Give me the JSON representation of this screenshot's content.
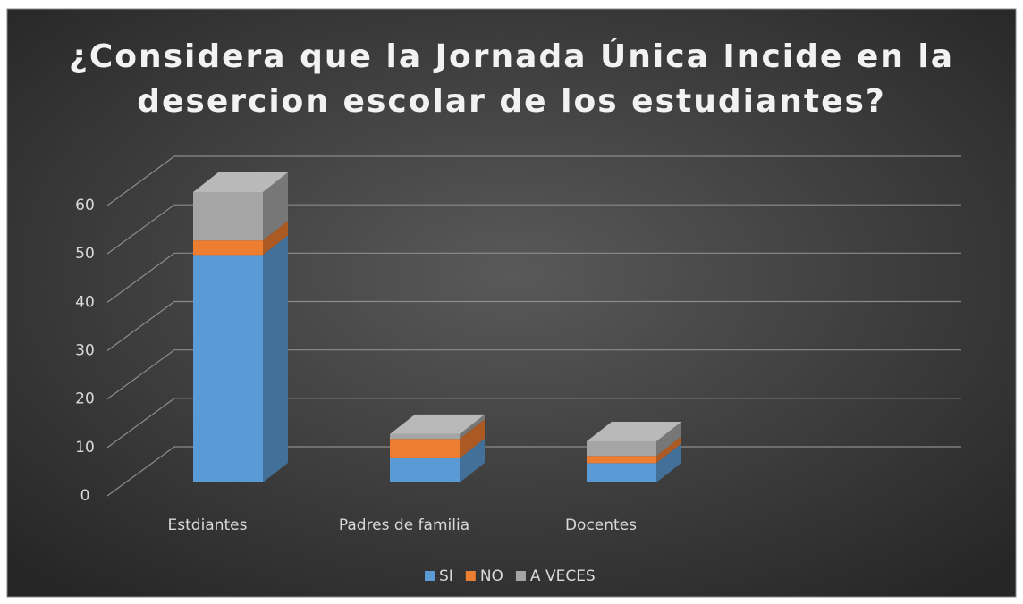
{
  "chart_data": {
    "type": "bar3d_stacked",
    "title": "¿Considera que la Jornada Única Incide en la deserción escolar de los estudiantes?",
    "title_lines": [
      "¿Considera que la Jornada Única Incide en la",
      "desercion escolar de los estudiantes?"
    ],
    "categories": [
      "Estdiantes",
      "Padres de familia",
      "Docentes"
    ],
    "series": [
      {
        "name": "SI",
        "color": "#5b9bd5",
        "values": [
          47,
          5,
          4
        ]
      },
      {
        "name": "NO",
        "color": "#ed7d31",
        "values": [
          3,
          4,
          1.5
        ]
      },
      {
        "name": "A VECES",
        "color": "#a5a5a5",
        "values": [
          10,
          1,
          3
        ]
      }
    ],
    "ylim": [
      0,
      60
    ],
    "yticks": [
      0,
      10,
      20,
      30,
      40,
      50,
      60
    ],
    "grid": true,
    "legend": "bottom"
  }
}
